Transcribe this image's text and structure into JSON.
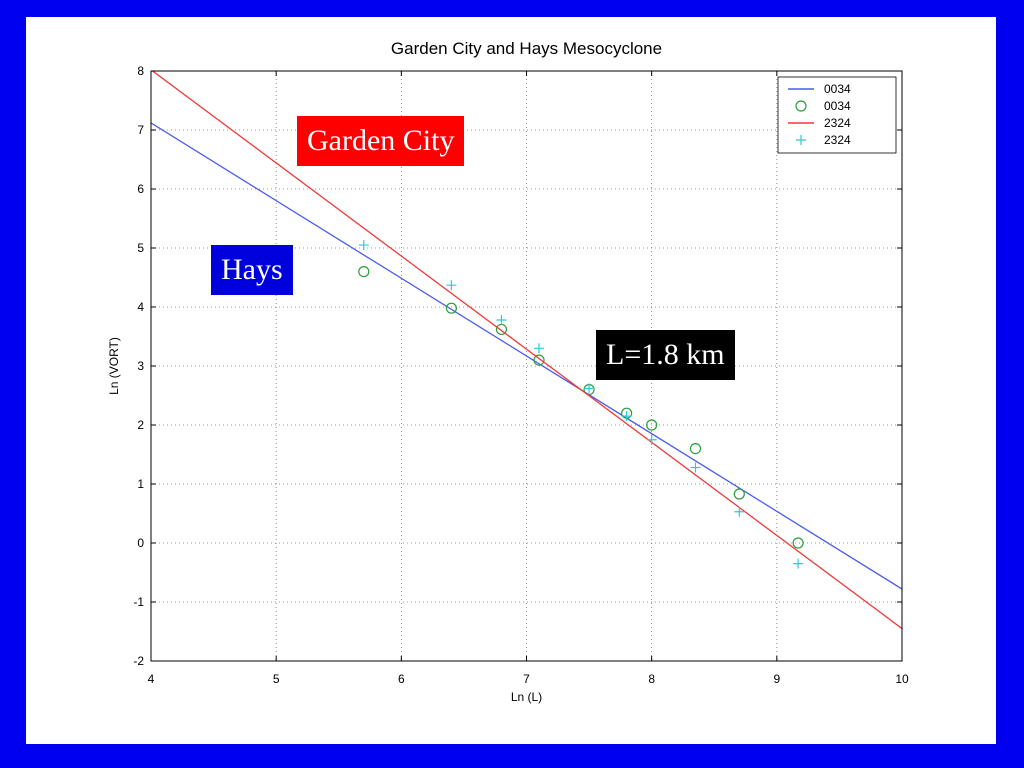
{
  "chart_data": {
    "type": "scatter",
    "title": "Garden City and Hays Mesocyclone",
    "xlabel": "Ln (L)",
    "ylabel": "Ln (VORT)",
    "xlim": [
      4,
      10
    ],
    "ylim": [
      -2,
      8
    ],
    "xticks": [
      4,
      5,
      6,
      7,
      8,
      9,
      10
    ],
    "yticks": [
      -2,
      -1,
      0,
      1,
      2,
      3,
      4,
      5,
      6,
      7,
      8
    ],
    "grid": true,
    "legend_position": "top-right",
    "series": [
      {
        "name": "0034",
        "kind": "line",
        "color": "#4a5cf0",
        "x": [
          4,
          10
        ],
        "y": [
          7.12,
          -0.78
        ]
      },
      {
        "name": "0034",
        "kind": "scatter",
        "marker": "circle",
        "color": "#2a9d3a",
        "x": [
          5.7,
          6.4,
          6.8,
          7.1,
          7.5,
          7.8,
          8.0,
          8.35,
          8.7,
          9.17
        ],
        "y": [
          4.6,
          3.98,
          3.62,
          3.1,
          2.6,
          2.2,
          2.0,
          1.6,
          0.83,
          0.0
        ]
      },
      {
        "name": "2324",
        "kind": "line",
        "color": "#f03a3a",
        "x": [
          4,
          10
        ],
        "y": [
          8.02,
          -1.45
        ]
      },
      {
        "name": "2324",
        "kind": "scatter",
        "marker": "plus",
        "color": "#33c8d8",
        "x": [
          5.7,
          6.4,
          6.8,
          7.1,
          7.5,
          7.8,
          8.0,
          8.35,
          8.7,
          9.17
        ],
        "y": [
          5.05,
          4.37,
          3.78,
          3.3,
          2.62,
          2.15,
          1.75,
          1.28,
          0.53,
          -0.35
        ]
      }
    ]
  },
  "annotations": {
    "garden_city": "Garden City",
    "hays": "Hays",
    "length_scale": "L=1.8 km"
  },
  "colors": {
    "border": "#0000f0",
    "garden_city_box": "#ff0000",
    "hays_box": "#0000dd",
    "length_box": "#000000"
  }
}
